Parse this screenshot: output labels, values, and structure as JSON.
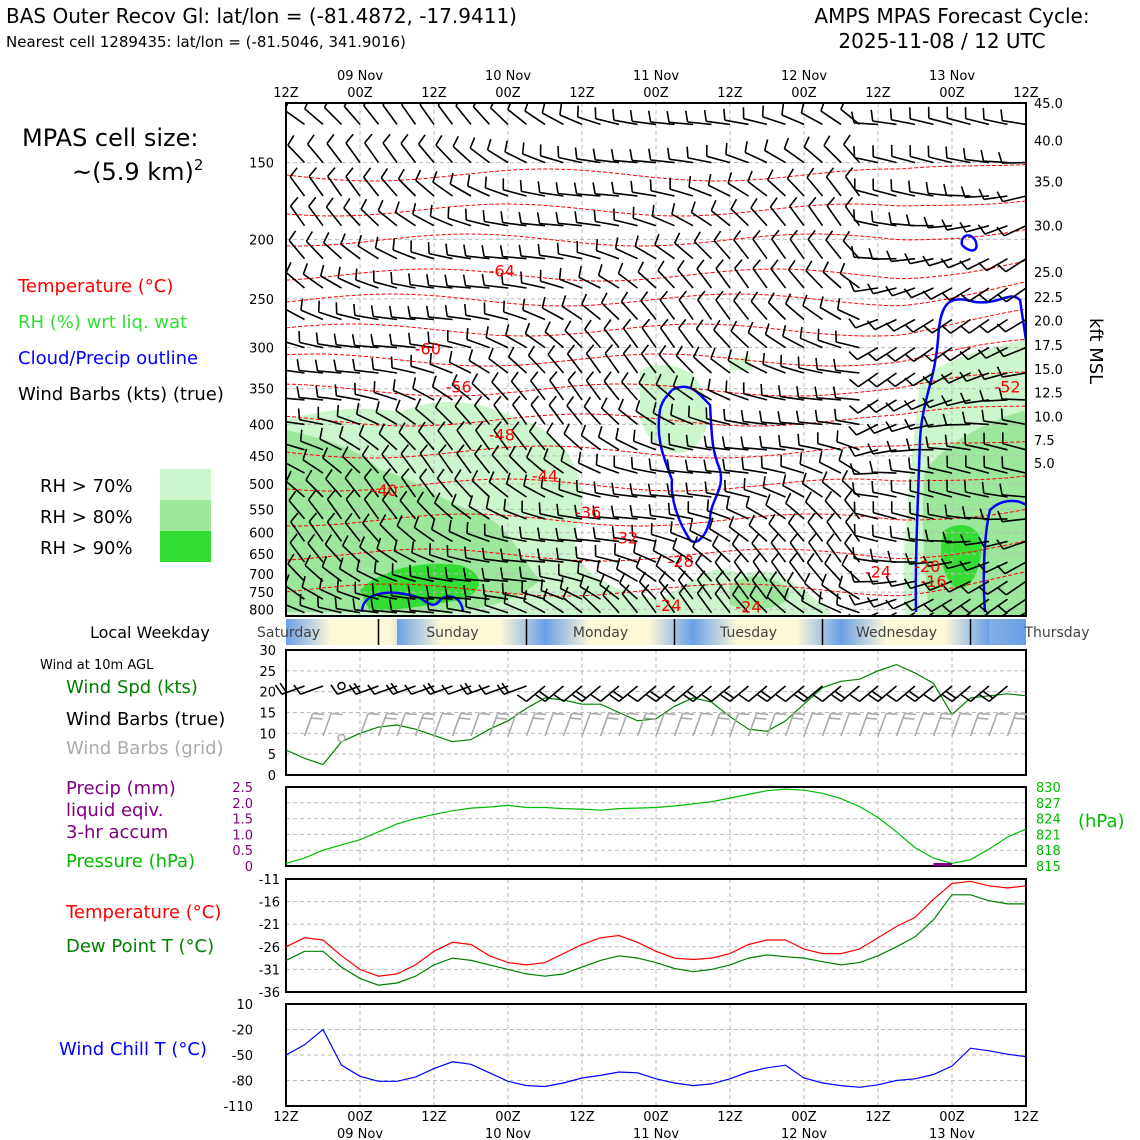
{
  "header": {
    "title_left": "BAS Outer Recov Gl: lat/lon = (-81.4872, -17.9411)",
    "subtitle_left": "Nearest cell 1289435: lat/lon = (-81.5046, 341.9016)",
    "title_right_1": "AMPS MPAS Forecast Cycle:",
    "title_right_2": "2025-11-08 / 12 UTC"
  },
  "side": {
    "cell_size_1": "MPAS cell size:",
    "cell_size_2": "~(5.9 km)",
    "cell_size_sup": "2",
    "legend_temp": "Temperature (°C)",
    "legend_rh": "RH (%) wrt liq. wat",
    "legend_cloud": "Cloud/Precip outline",
    "legend_barbs": "Wind Barbs (kts) (true)",
    "rh_70": "RH > 70%",
    "rh_80": "RH > 80%",
    "rh_90": "RH > 90%",
    "weekday_label": "Local Weekday",
    "wind10m": "Wind at 10m AGL",
    "wind_spd": "Wind Spd (kts)",
    "wind_barbs_true": "Wind Barbs (true)",
    "wind_barbs_grid": "Wind Barbs (grid)",
    "precip_1": "Precip (mm)",
    "precip_2": "liquid eqiv.",
    "precip_3": "3-hr accum",
    "pressure": "Pressure (hPa)",
    "hpa": "(hPa)",
    "temp": "Temperature (°C)",
    "dewpoint": "Dew Point T (°C)",
    "windchill": "Wind Chill T (°C)",
    "kft": "kft MSL"
  },
  "colors": {
    "temp": "#ff0000",
    "rh_text": "#33dd33",
    "cloud": "#0000ff",
    "rh70": "#ccf7cc",
    "rh80": "#9be89b",
    "rh90": "#33dd33",
    "wind_spd": "#007f00",
    "pressure": "#00bb00",
    "precip": "#800080",
    "dewpoint": "#007f00",
    "windchill": "#0000ff",
    "grid_barbs": "#aaaaaa"
  },
  "time_axis": {
    "hours_range": [
      0,
      120
    ],
    "ticks": [
      {
        "h": 0,
        "top": "12Z",
        "date": ""
      },
      {
        "h": 12,
        "top": "00Z",
        "date": "09 Nov"
      },
      {
        "h": 24,
        "top": "12Z",
        "date": ""
      },
      {
        "h": 36,
        "top": "00Z",
        "date": "10 Nov"
      },
      {
        "h": 48,
        "top": "12Z",
        "date": ""
      },
      {
        "h": 60,
        "top": "00Z",
        "date": "11 Nov"
      },
      {
        "h": 72,
        "top": "12Z",
        "date": ""
      },
      {
        "h": 84,
        "top": "00Z",
        "date": "12 Nov"
      },
      {
        "h": 96,
        "top": "12Z",
        "date": ""
      },
      {
        "h": 108,
        "top": "00Z",
        "date": "13 Nov"
      },
      {
        "h": 120,
        "top": "12Z",
        "date": ""
      }
    ]
  },
  "weekdays": [
    {
      "name": "Saturday",
      "h": 0
    },
    {
      "name": "Sunday",
      "h": 24
    },
    {
      "name": "Monday",
      "h": 48
    },
    {
      "name": "Tuesday",
      "h": 72
    },
    {
      "name": "Wednesday",
      "h": 96
    },
    {
      "name": "Thursday",
      "h": 120
    }
  ],
  "chart_data": [
    {
      "type": "time-height cross-section",
      "y_left_ticks": [
        "150",
        "200",
        "250",
        "300",
        "350",
        "400",
        "450",
        "500",
        "550",
        "600",
        "650",
        "700",
        "750",
        "800"
      ],
      "y_left_values": [
        150,
        200,
        250,
        300,
        350,
        400,
        450,
        500,
        550,
        600,
        650,
        700,
        750,
        800
      ],
      "ylim_hpa": [
        820,
        120
      ],
      "y_right_ticks": [
        {
          "label": "45.0",
          "p": 120
        },
        {
          "label": "40.0",
          "p": 138
        },
        {
          "label": "35.0",
          "p": 161
        },
        {
          "label": "30.0",
          "p": 190
        },
        {
          "label": "25.0",
          "p": 226
        },
        {
          "label": "22.5",
          "p": 248
        },
        {
          "label": "20.0",
          "p": 271
        },
        {
          "label": "17.5",
          "p": 297
        },
        {
          "label": "15.0",
          "p": 325
        },
        {
          "label": "12.5",
          "p": 355
        },
        {
          "label": "10.0",
          "p": 388
        },
        {
          "label": "7.5",
          "p": 424
        },
        {
          "label": "5.0",
          "p": 462
        }
      ],
      "temperature_labels": [
        {
          "text": "-64",
          "h": 35,
          "p": 230
        },
        {
          "text": "-60",
          "h": 23,
          "p": 308
        },
        {
          "text": "-56",
          "h": 28,
          "p": 355
        },
        {
          "text": "-52",
          "h": 117,
          "p": 355
        },
        {
          "text": "-48",
          "h": 35,
          "p": 425
        },
        {
          "text": "-44",
          "h": 42,
          "p": 495
        },
        {
          "text": "-40",
          "h": 16,
          "p": 523
        },
        {
          "text": "-36",
          "h": 49,
          "p": 568
        },
        {
          "text": "-32",
          "h": 55,
          "p": 625
        },
        {
          "text": "-28",
          "h": 64,
          "p": 682
        },
        {
          "text": "-20",
          "h": 104,
          "p": 695
        },
        {
          "text": "-24",
          "h": 96,
          "p": 710
        },
        {
          "text": "-16",
          "h": 105,
          "p": 735
        },
        {
          "text": "-24",
          "h": 62,
          "p": 805
        },
        {
          "text": "-24",
          "h": 75,
          "p": 810
        }
      ]
    },
    {
      "type": "line",
      "name_panel": "wind10m",
      "ylim": [
        0,
        30
      ],
      "y_ticks": [
        0,
        5,
        10,
        15,
        20,
        25,
        30
      ],
      "x_hours": [
        0,
        3,
        6,
        9,
        12,
        15,
        18,
        21,
        24,
        27,
        30,
        33,
        36,
        39,
        42,
        45,
        48,
        51,
        54,
        57,
        60,
        63,
        66,
        69,
        72,
        75,
        78,
        81,
        84,
        87,
        90,
        93,
        96,
        99,
        102,
        105,
        108,
        111,
        114,
        117,
        120
      ],
      "wind_speed_kts": [
        6,
        4,
        2.5,
        8,
        10,
        11.5,
        12,
        11,
        9.5,
        8,
        8.5,
        11,
        13,
        16,
        18.5,
        18,
        17,
        17,
        15,
        13,
        13.5,
        16.5,
        18.5,
        17.5,
        14,
        11,
        10.5,
        13,
        17,
        21,
        22.5,
        23,
        25,
        26.5,
        24.5,
        22,
        14.5,
        18.5,
        19,
        19.5,
        19
      ]
    },
    {
      "type": "line",
      "name_panel": "precip-pressure",
      "ylim_precip": [
        0,
        2.5
      ],
      "precip_ticks": [
        "0",
        "0.5",
        "1.0",
        "1.5",
        "2.0",
        "2.5"
      ],
      "pressure_ticks": [
        "815",
        "818",
        "821",
        "824",
        "827",
        "830"
      ],
      "ylim_pressure": [
        815,
        830
      ],
      "x_hours": [
        0,
        3,
        6,
        9,
        12,
        15,
        18,
        21,
        24,
        27,
        30,
        33,
        36,
        39,
        42,
        45,
        48,
        51,
        54,
        57,
        60,
        63,
        66,
        69,
        72,
        75,
        78,
        81,
        84,
        87,
        90,
        93,
        96,
        99,
        102,
        105,
        108,
        111,
        114,
        117,
        120
      ],
      "pressure_hpa": [
        815.5,
        816.5,
        818,
        819,
        820,
        821.5,
        823,
        824,
        824.8,
        825.5,
        826,
        826.2,
        826.5,
        826.1,
        826.1,
        825.9,
        825.8,
        825.6,
        825.9,
        826,
        826.1,
        826.4,
        826.8,
        827.2,
        827.9,
        828.6,
        829.3,
        829.6,
        829.4,
        828.8,
        827.8,
        826.3,
        824.2,
        821.5,
        818.5,
        816.5,
        815.5,
        816.2,
        818.2,
        820.5,
        822
      ]
    },
    {
      "type": "line",
      "name_panel": "temperature",
      "ylim": [
        -36,
        -11
      ],
      "y_ticks": [
        -36,
        -31,
        -26,
        -21,
        -16,
        -11
      ],
      "x_hours": [
        0,
        3,
        6,
        9,
        12,
        15,
        18,
        21,
        24,
        27,
        30,
        33,
        36,
        39,
        42,
        45,
        48,
        51,
        54,
        57,
        60,
        63,
        66,
        69,
        72,
        75,
        78,
        81,
        84,
        87,
        90,
        93,
        96,
        99,
        102,
        105,
        108,
        111,
        114,
        117,
        120
      ],
      "temperature_c": [
        -26,
        -24,
        -24.5,
        -28,
        -31,
        -32.5,
        -32,
        -30,
        -27,
        -25,
        -25.5,
        -28,
        -29.5,
        -30,
        -29.5,
        -27.5,
        -25.5,
        -24,
        -23.5,
        -25,
        -27,
        -28.5,
        -28.8,
        -28.5,
        -27.5,
        -25.5,
        -24.5,
        -24.5,
        -26.5,
        -27.5,
        -27.5,
        -26.5,
        -24,
        -21.5,
        -19.5,
        -15.5,
        -12,
        -11.5,
        -12.5,
        -13,
        -12.5
      ],
      "dewpoint_c": [
        -29,
        -27,
        -27,
        -30.5,
        -33,
        -34.5,
        -34,
        -32.5,
        -30,
        -28.5,
        -29,
        -30,
        -31,
        -32,
        -32.5,
        -32,
        -30.5,
        -29,
        -28,
        -28.5,
        -29.5,
        -30.8,
        -31.5,
        -31,
        -30,
        -28.5,
        -27.8,
        -28.2,
        -28.5,
        -29.3,
        -30,
        -29.5,
        -28,
        -26,
        -23.8,
        -20,
        -14.5,
        -14.5,
        -15.8,
        -16.5,
        -16.5
      ]
    },
    {
      "type": "line",
      "name_panel": "windchill",
      "ylim": [
        -110,
        10
      ],
      "y_ticks": [
        -110,
        -80,
        -50,
        -20,
        10
      ],
      "x_hours": [
        0,
        3,
        6,
        9,
        12,
        15,
        18,
        21,
        24,
        27,
        30,
        33,
        36,
        39,
        42,
        45,
        48,
        51,
        54,
        57,
        60,
        63,
        66,
        69,
        72,
        75,
        78,
        81,
        84,
        87,
        90,
        93,
        96,
        99,
        102,
        105,
        108,
        111,
        114,
        117,
        120
      ],
      "windchill_c": [
        -50,
        -38,
        -20,
        -62,
        -75,
        -81,
        -81,
        -76,
        -66,
        -58,
        -61,
        -71,
        -81,
        -86,
        -87,
        -83,
        -77,
        -74,
        -70,
        -71,
        -78,
        -83,
        -86,
        -84,
        -78,
        -70,
        -65,
        -62,
        -77,
        -83,
        -86,
        -88,
        -85,
        -80,
        -78,
        -73,
        -63,
        -42,
        -45,
        -49,
        -52
      ]
    }
  ]
}
